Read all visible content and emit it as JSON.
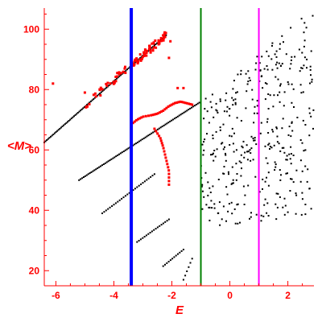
{
  "chart_data": {
    "type": "scatter",
    "title": "",
    "xlabel": "E",
    "ylabel": "<M>",
    "xlim": [
      -6.4,
      2.9
    ],
    "ylim": [
      15,
      107
    ],
    "grid": false,
    "legend": "none",
    "colors": {
      "axis": "#ff0000",
      "points_black": "#000000",
      "points_red": "#ff0000",
      "blue_line": "#0000ff",
      "green_line": "#008000",
      "magenta_line": "#ff00ff"
    },
    "x_ticks": [
      {
        "value": -6,
        "label": "-6"
      },
      {
        "value": -4,
        "label": "-4"
      },
      {
        "value": -2,
        "label": "-2"
      },
      {
        "value": 0,
        "label": "0"
      },
      {
        "value": 2,
        "label": "2"
      }
    ],
    "y_ticks": [
      {
        "value": 20,
        "label": "20"
      },
      {
        "value": 40,
        "label": "40"
      },
      {
        "value": 60,
        "label": "60"
      },
      {
        "value": 80,
        "label": "80"
      },
      {
        "value": 100,
        "label": "100"
      }
    ],
    "vertical_lines": [
      {
        "x": -3.4,
        "color": "#0000ff",
        "width": 4
      },
      {
        "x": -1.0,
        "color": "#008000",
        "width": 2
      },
      {
        "x": 1.0,
        "color": "#ff00ff",
        "width": 2
      }
    ],
    "series": [
      {
        "color": "#000000",
        "type": "segments",
        "segments": [
          {
            "x0": -6.4,
            "y0": 62.5,
            "x1": -2.2,
            "y1": 98,
            "n": 95
          },
          {
            "x0": -5.2,
            "y0": 50,
            "x1": -1.0,
            "y1": 76,
            "n": 80
          },
          {
            "x0": -4.4,
            "y0": 39,
            "x1": -2.6,
            "y1": 52,
            "n": 28
          },
          {
            "x0": -3.2,
            "y0": 29.5,
            "x1": -2.1,
            "y1": 37,
            "n": 18
          },
          {
            "x0": -2.3,
            "y0": 21.5,
            "x1": -1.6,
            "y1": 27,
            "n": 12
          },
          {
            "x0": -1.6,
            "y0": 17,
            "x1": -1.3,
            "y1": 24,
            "n": 6
          }
        ]
      },
      {
        "color": "#000000",
        "type": "scatter_cloud",
        "n": 380,
        "xrange": [
          -1.0,
          2.9
        ],
        "y_lower": [
          34,
          38
        ],
        "y_upper": [
          76,
          107
        ]
      },
      {
        "color": "#ff0000",
        "type": "band",
        "x0": -5.3,
        "y0": 72.5,
        "x1": -2.2,
        "y1": 98,
        "n": 90,
        "spread": 1.4
      },
      {
        "color": "#ff0000",
        "type": "polyline",
        "n": 35,
        "points": [
          [
            -3.4,
            68.5
          ],
          [
            -3.2,
            70
          ],
          [
            -3.0,
            71
          ],
          [
            -2.7,
            71.5
          ],
          [
            -2.5,
            72
          ],
          [
            -2.3,
            73
          ],
          [
            -2.1,
            74.5
          ],
          [
            -1.9,
            75.5
          ],
          [
            -1.7,
            76
          ],
          [
            -1.5,
            75.5
          ],
          [
            -1.3,
            75
          ]
        ]
      },
      {
        "color": "#ff0000",
        "type": "polyline",
        "n": 20,
        "points": [
          [
            -2.6,
            67
          ],
          [
            -2.4,
            64
          ],
          [
            -2.3,
            61
          ],
          [
            -2.2,
            57
          ],
          [
            -2.1,
            53
          ],
          [
            -2.1,
            48.5
          ]
        ]
      },
      {
        "color": "#ff0000",
        "type": "points",
        "points": [
          [
            -6.1,
            82
          ],
          [
            -5.0,
            79
          ],
          [
            -2.1,
            90.5
          ],
          [
            -1.8,
            80.5
          ],
          [
            -1.6,
            80.5
          ],
          [
            -2.05,
            96
          ]
        ]
      }
    ]
  }
}
